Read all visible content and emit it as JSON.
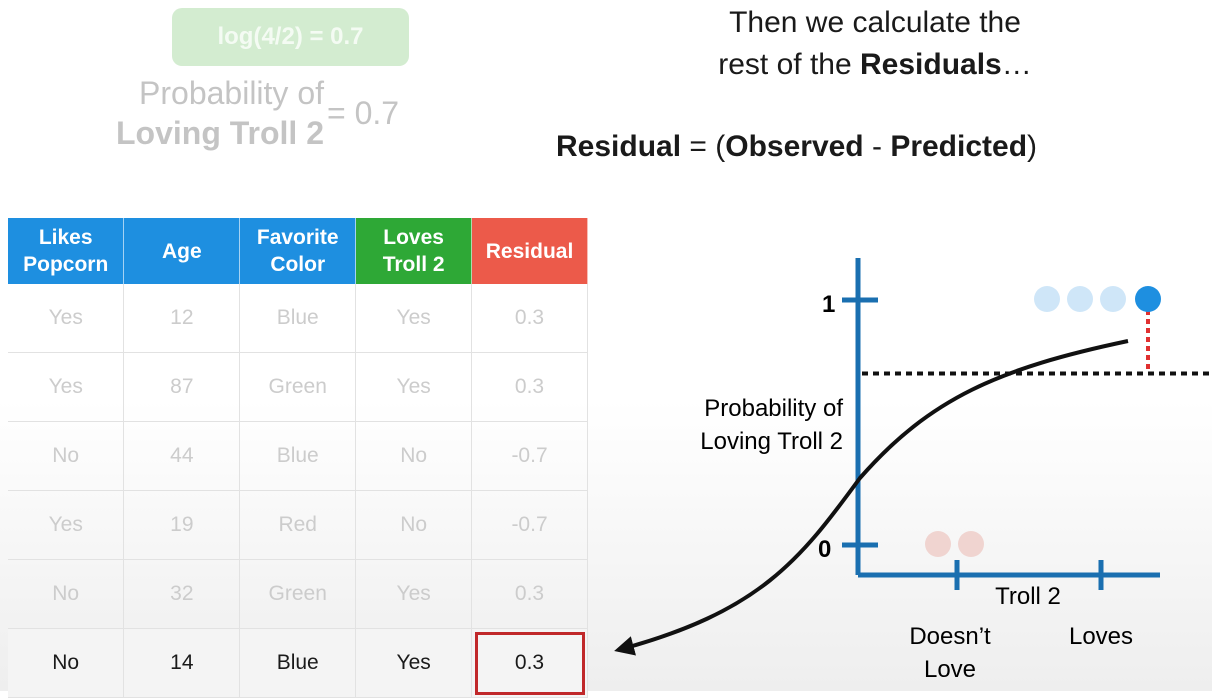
{
  "faded_formula": {
    "log_expression": "log(4/2) = 0.7",
    "probability_line1": "Probability of",
    "probability_line2": "Loving Troll 2",
    "probability_value": "= 0.7"
  },
  "headline": {
    "line1": "Then we calculate the",
    "line2_prefix": "rest of the ",
    "line2_bold": "Residuals",
    "line2_suffix": "…"
  },
  "formula": {
    "residual": "Residual",
    "equals": " = (",
    "observed": "Observed",
    "minus": " - ",
    "predicted": "Predicted",
    "close": ")"
  },
  "table": {
    "headers": [
      "Likes Popcorn",
      "Age",
      "Favorite Color",
      "Loves Troll 2",
      "Residual"
    ],
    "header_colors": [
      "#1e8fe0",
      "#1e8fe0",
      "#1e8fe0",
      "#2ea836",
      "#ec5a4a"
    ],
    "rows": [
      [
        "Yes",
        "12",
        "Blue",
        "Yes",
        "0.3"
      ],
      [
        "Yes",
        "87",
        "Green",
        "Yes",
        "0.3"
      ],
      [
        "No",
        "44",
        "Blue",
        "No",
        "-0.7"
      ],
      [
        "Yes",
        "19",
        "Red",
        "No",
        "-0.7"
      ],
      [
        "No",
        "32",
        "Green",
        "Yes",
        "0.3"
      ],
      [
        "No",
        "14",
        "Blue",
        "Yes",
        "0.3"
      ]
    ],
    "active_row": 5
  },
  "graph": {
    "y_axis_label_line1": "Probability of",
    "y_axis_label_line2": "Loving Troll 2",
    "y_tick_top": "1",
    "y_tick_bottom": "0",
    "x_axis_title": "Troll 2",
    "x_cat1_line1": "Doesn’t",
    "x_cat1_line2": "Love",
    "x_cat2": "Loves",
    "prediction_level": 0.7,
    "colors": {
      "axis": "#1a6fb0",
      "loves_point": "#1e8fe0",
      "loves_point_faded": "#cfe6f8",
      "doesnt_love_point_faded": "#f0d4d0",
      "residual_line": "#e03030"
    }
  }
}
